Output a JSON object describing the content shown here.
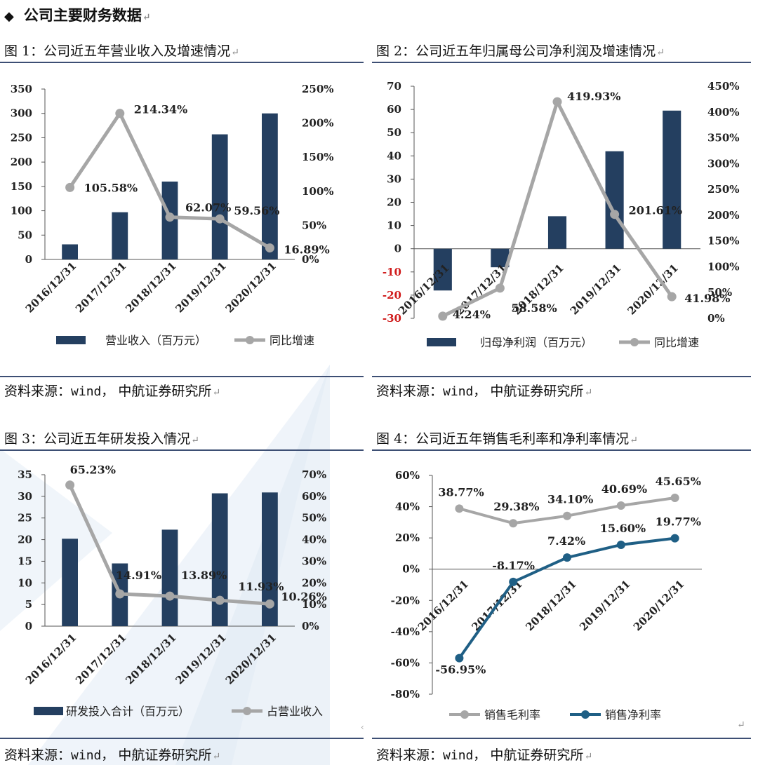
{
  "page": {
    "heading": "公司主要财务数据",
    "figures": [
      {
        "title": "图 1：公司近五年营业收入及增速情况",
        "source_prefix": "资料来源：",
        "source_mono": "wind，",
        "source_suffix": "中航证券研究所"
      },
      {
        "title": "图 2：公司近五年归属母公司净利润及增速情况",
        "source_prefix": "资料来源：",
        "source_mono": "wind，",
        "source_suffix": "中航证券研究所"
      },
      {
        "title": "图 3：公司近五年研发投入情况",
        "source_prefix": "资料来源：",
        "source_mono": "wind，",
        "source_suffix": "中航证券研究所"
      },
      {
        "title": "图 4：公司近五年销售毛利率和净利率情况",
        "source_prefix": "资料来源：",
        "source_mono": "wind，",
        "source_suffix": "中航证券研究所"
      }
    ],
    "colors": {
      "bar": "#243f60",
      "growth_line": "#a6a6a6",
      "net_margin_line": "#1f5f85",
      "rule": "#3d4f74",
      "negative_tick": "#d01c1c"
    }
  },
  "chart_data": [
    {
      "type": "bar",
      "categories": [
        "2016/12/31",
        "2017/12/31",
        "2018/12/31",
        "2019/12/31",
        "2020/12/31"
      ],
      "series": [
        {
          "name": "营业收入（百万元）",
          "kind": "bar",
          "axis": "left",
          "values": [
            31,
            97,
            160,
            257,
            300
          ]
        },
        {
          "name": "同比增速",
          "kind": "line",
          "axis": "right",
          "values": [
            105.58,
            214.34,
            62.07,
            59.56,
            16.89
          ],
          "labels": [
            "105.58%",
            "214.34%",
            "62.07%",
            "59.56%",
            "16.89%"
          ]
        }
      ],
      "left_axis": {
        "ylim": [
          0,
          350
        ],
        "ticks": [
          "0",
          "50",
          "100",
          "150",
          "200",
          "250",
          "300",
          "350"
        ]
      },
      "right_axis": {
        "ylim": [
          0,
          250
        ],
        "ticks": [
          "0%",
          "50%",
          "100%",
          "150%",
          "200%",
          "250%"
        ]
      },
      "legend": "bottom"
    },
    {
      "type": "bar",
      "categories": [
        "2016/12/31",
        "2017/12/31",
        "2018/12/31",
        "2019/12/31",
        "2020/12/31"
      ],
      "series": [
        {
          "name": "归母净利润（百万元）",
          "kind": "bar",
          "axis": "left",
          "values": [
            -18,
            -8,
            14,
            42,
            59.5
          ]
        },
        {
          "name": "同比增速",
          "kind": "line",
          "axis": "right",
          "values": [
            4.24,
            58.58,
            419.93,
            201.61,
            41.98
          ],
          "labels": [
            "4.24%",
            "58.58%",
            "419.93%",
            "201.61%",
            "41.98%"
          ]
        }
      ],
      "left_axis": {
        "ylim": [
          -30,
          70
        ],
        "ticks": [
          "-30",
          "-20",
          "-10",
          "0",
          "10",
          "20",
          "30",
          "40",
          "50",
          "60",
          "70"
        ]
      },
      "right_axis": {
        "ylim": [
          0,
          450
        ],
        "ticks": [
          "0%",
          "50%",
          "100%",
          "150%",
          "200%",
          "250%",
          "300%",
          "350%",
          "400%",
          "450%"
        ]
      },
      "legend": "bottom"
    },
    {
      "type": "bar",
      "categories": [
        "2016/12/31",
        "2017/12/31",
        "2018/12/31",
        "2019/12/31",
        "2020/12/31"
      ],
      "series": [
        {
          "name": "研发投入合计（百万元）",
          "kind": "bar",
          "axis": "left",
          "values": [
            20.2,
            14.5,
            22.3,
            30.7,
            30.9
          ]
        },
        {
          "name": "占营业收入",
          "kind": "line",
          "axis": "right",
          "values": [
            65.23,
            14.91,
            13.89,
            11.93,
            10.26
          ],
          "labels": [
            "65.23%",
            "14.91%",
            "13.89%",
            "11.93%",
            "10.26%"
          ]
        }
      ],
      "left_axis": {
        "ylim": [
          0,
          35
        ],
        "ticks": [
          "0",
          "5",
          "10",
          "15",
          "20",
          "25",
          "30",
          "35"
        ]
      },
      "right_axis": {
        "ylim": [
          0,
          70
        ],
        "ticks": [
          "0%",
          "10%",
          "20%",
          "30%",
          "40%",
          "50%",
          "60%",
          "70%"
        ]
      },
      "legend": "bottom"
    },
    {
      "type": "line",
      "categories": [
        "2016/12/31",
        "2017/12/31",
        "2018/12/31",
        "2019/12/31",
        "2020/12/31"
      ],
      "series": [
        {
          "name": "销售毛利率",
          "values": [
            38.77,
            29.38,
            34.1,
            40.69,
            45.65
          ],
          "labels": [
            "38.77%",
            "29.38%",
            "34.10%",
            "40.69%",
            "45.65%"
          ]
        },
        {
          "name": "销售净利率",
          "values": [
            -56.95,
            -8.17,
            7.42,
            15.6,
            19.77
          ],
          "labels": [
            "-56.95%",
            "-8.17%",
            "7.42%",
            "15.60%",
            "19.77%"
          ]
        }
      ],
      "left_axis": {
        "ylim": [
          -80,
          60
        ],
        "ticks": [
          "-80%",
          "-60%",
          "-40%",
          "-20%",
          "0%",
          "20%",
          "40%",
          "60%"
        ]
      },
      "legend": "bottom"
    }
  ]
}
